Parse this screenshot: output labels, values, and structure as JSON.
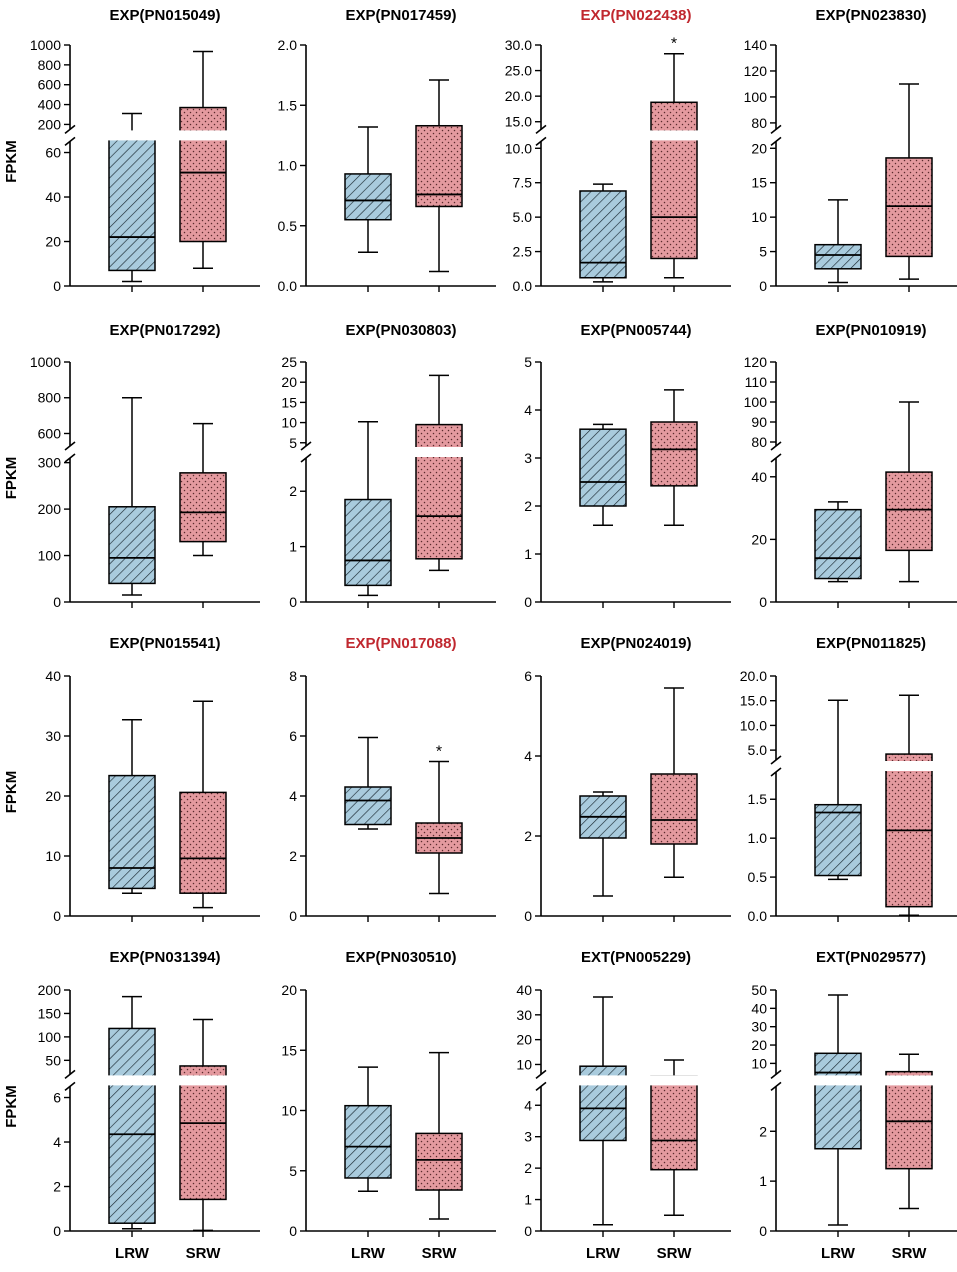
{
  "y_axis_label": "FPKM",
  "x_categories": [
    "LRW",
    "SRW"
  ],
  "colors": {
    "lrw_fill": "#a9cbdd",
    "srw_fill": "#e49a9f",
    "axis": "#000000",
    "title_default": "#000000",
    "title_significant": "#c0282f"
  },
  "chart_data": [
    {
      "type": "boxplot",
      "title": "EXP(PN015049)",
      "highlight": false,
      "ylabel": "FPKM",
      "categories": [
        "LRW",
        "SRW"
      ],
      "axis_break": true,
      "lower_ticks": [
        0,
        20,
        40,
        60
      ],
      "upper_ticks": [
        200,
        400,
        600,
        800,
        1000
      ],
      "lower_range": [
        0,
        65
      ],
      "upper_range": [
        150,
        1000
      ],
      "boxes": [
        {
          "name": "LRW",
          "min": 2,
          "q1": 7,
          "median": 22,
          "q3": 120,
          "max": 310
        },
        {
          "name": "SRW",
          "min": 8,
          "q1": 20,
          "median": 51,
          "q3": 370,
          "max": 935
        }
      ],
      "annotations": []
    },
    {
      "type": "boxplot",
      "title": "EXP(PN017459)",
      "highlight": false,
      "ylabel": "",
      "categories": [
        "LRW",
        "SRW"
      ],
      "axis_break": false,
      "ticks": [
        0.0,
        0.5,
        1.0,
        1.5,
        2.0
      ],
      "ylim": [
        0,
        2.0
      ],
      "decimals": 1,
      "boxes": [
        {
          "name": "LRW",
          "min": 0.28,
          "q1": 0.55,
          "median": 0.71,
          "q3": 0.93,
          "max": 1.32
        },
        {
          "name": "SRW",
          "min": 0.12,
          "q1": 0.66,
          "median": 0.76,
          "q3": 1.33,
          "max": 1.71
        }
      ],
      "annotations": []
    },
    {
      "type": "boxplot",
      "title": "EXP(PN022438)",
      "highlight": true,
      "ylabel": "",
      "categories": [
        "LRW",
        "SRW"
      ],
      "axis_break": true,
      "decimals": 1,
      "lower_ticks": [
        0.0,
        2.5,
        5.0,
        7.5,
        10.0
      ],
      "upper_ticks": [
        15,
        20,
        25,
        30
      ],
      "lower_range": [
        0,
        10.5
      ],
      "upper_range": [
        13.5,
        30
      ],
      "boxes": [
        {
          "name": "LRW",
          "min": 0.3,
          "q1": 0.6,
          "median": 1.7,
          "q3": 6.9,
          "max": 7.4
        },
        {
          "name": "SRW",
          "min": 0.6,
          "q1": 2.0,
          "median": 5.0,
          "q3": 18.8,
          "max": 28.3
        }
      ],
      "annotations": [
        {
          "category": "SRW",
          "text": "*"
        }
      ]
    },
    {
      "type": "boxplot",
      "title": "EXP(PN023830)",
      "highlight": false,
      "ylabel": "",
      "categories": [
        "LRW",
        "SRW"
      ],
      "axis_break": true,
      "lower_ticks": [
        0,
        5,
        10,
        15,
        20
      ],
      "upper_ticks": [
        80,
        100,
        120,
        140
      ],
      "lower_range": [
        0,
        21
      ],
      "upper_range": [
        75,
        140
      ],
      "boxes": [
        {
          "name": "LRW",
          "min": 0.5,
          "q1": 2.5,
          "median": 4.5,
          "q3": 6.0,
          "max": 12.5
        },
        {
          "name": "SRW",
          "min": 1.0,
          "q1": 4.3,
          "median": 11.6,
          "q3": 18.6,
          "max": 110
        }
      ],
      "annotations": []
    },
    {
      "type": "boxplot",
      "title": "EXP(PN017292)",
      "highlight": false,
      "ylabel": "FPKM",
      "categories": [
        "LRW",
        "SRW"
      ],
      "axis_break": true,
      "lower_ticks": [
        0,
        100,
        200,
        300
      ],
      "upper_ticks": [
        600,
        800,
        1000
      ],
      "lower_range": [
        0,
        310
      ],
      "upper_range": [
        530,
        1000
      ],
      "boxes": [
        {
          "name": "LRW",
          "min": 15,
          "q1": 40,
          "median": 95,
          "q3": 205,
          "max": 800
        },
        {
          "name": "SRW",
          "min": 100,
          "q1": 130,
          "median": 193,
          "q3": 278,
          "max": 655
        }
      ],
      "annotations": []
    },
    {
      "type": "boxplot",
      "title": "EXP(PN030803)",
      "highlight": false,
      "ylabel": "",
      "categories": [
        "LRW",
        "SRW"
      ],
      "axis_break": true,
      "lower_ticks": [
        0,
        1,
        2
      ],
      "upper_ticks": [
        5,
        10,
        15,
        20,
        25
      ],
      "lower_range": [
        0,
        2.6
      ],
      "upper_range": [
        4.2,
        25
      ],
      "boxes": [
        {
          "name": "LRW",
          "min": 0.12,
          "q1": 0.3,
          "median": 0.75,
          "q3": 1.85,
          "max": 10.2
        },
        {
          "name": "SRW",
          "min": 0.57,
          "q1": 0.78,
          "median": 1.55,
          "q3": 9.5,
          "max": 21.7
        }
      ],
      "annotations": []
    },
    {
      "type": "boxplot",
      "title": "EXP(PN005744)",
      "highlight": false,
      "ylabel": "",
      "categories": [
        "LRW",
        "SRW"
      ],
      "axis_break": false,
      "ticks": [
        0,
        1,
        2,
        3,
        4,
        5
      ],
      "ylim": [
        0,
        5
      ],
      "decimals": 0,
      "boxes": [
        {
          "name": "LRW",
          "min": 1.6,
          "q1": 2.0,
          "median": 2.5,
          "q3": 3.6,
          "max": 3.7
        },
        {
          "name": "SRW",
          "min": 1.6,
          "q1": 2.42,
          "median": 3.18,
          "q3": 3.75,
          "max": 4.42
        }
      ],
      "annotations": []
    },
    {
      "type": "boxplot",
      "title": "EXP(PN010919)",
      "highlight": false,
      "ylabel": "",
      "categories": [
        "LRW",
        "SRW"
      ],
      "axis_break": true,
      "lower_ticks": [
        0,
        20,
        40
      ],
      "upper_ticks": [
        80,
        90,
        100,
        110,
        120
      ],
      "lower_range": [
        0,
        46
      ],
      "upper_range": [
        78,
        120
      ],
      "boxes": [
        {
          "name": "LRW",
          "min": 6.5,
          "q1": 7.5,
          "median": 14,
          "q3": 29.5,
          "max": 32
        },
        {
          "name": "SRW",
          "min": 6.5,
          "q1": 16.5,
          "median": 29.5,
          "q3": 41.5,
          "max": 100
        }
      ],
      "annotations": []
    },
    {
      "type": "boxplot",
      "title": "EXP(PN015541)",
      "highlight": false,
      "ylabel": "FPKM",
      "categories": [
        "LRW",
        "SRW"
      ],
      "axis_break": false,
      "ticks": [
        0,
        10,
        20,
        30,
        40
      ],
      "ylim": [
        0,
        40
      ],
      "decimals": 0,
      "boxes": [
        {
          "name": "LRW",
          "min": 3.8,
          "q1": 4.6,
          "median": 8.0,
          "q3": 23.4,
          "max": 32.7
        },
        {
          "name": "SRW",
          "min": 1.4,
          "q1": 3.8,
          "median": 9.6,
          "q3": 20.6,
          "max": 35.8
        }
      ],
      "annotations": []
    },
    {
      "type": "boxplot",
      "title": "EXP(PN017088)",
      "highlight": true,
      "ylabel": "",
      "categories": [
        "LRW",
        "SRW"
      ],
      "axis_break": false,
      "ticks": [
        0,
        2,
        4,
        6,
        8
      ],
      "ylim": [
        0,
        8
      ],
      "decimals": 0,
      "boxes": [
        {
          "name": "LRW",
          "min": 2.9,
          "q1": 3.05,
          "median": 3.85,
          "q3": 4.3,
          "max": 5.95
        },
        {
          "name": "SRW",
          "min": 0.75,
          "q1": 2.1,
          "median": 2.6,
          "q3": 3.1,
          "max": 5.15
        }
      ],
      "annotations": [
        {
          "category": "SRW",
          "text": "*"
        }
      ]
    },
    {
      "type": "boxplot",
      "title": "EXP(PN024019)",
      "highlight": false,
      "ylabel": "",
      "categories": [
        "LRW",
        "SRW"
      ],
      "axis_break": false,
      "ticks": [
        0,
        2,
        4,
        6
      ],
      "ylim": [
        0,
        6
      ],
      "decimals": 0,
      "boxes": [
        {
          "name": "LRW",
          "min": 0.5,
          "q1": 1.95,
          "median": 2.48,
          "q3": 3.0,
          "max": 3.1
        },
        {
          "name": "SRW",
          "min": 0.97,
          "q1": 1.8,
          "median": 2.4,
          "q3": 3.55,
          "max": 5.7
        }
      ],
      "annotations": []
    },
    {
      "type": "boxplot",
      "title": "EXP(PN011825)",
      "highlight": false,
      "ylabel": "",
      "categories": [
        "LRW",
        "SRW"
      ],
      "axis_break": true,
      "decimals": 1,
      "lower_ticks": [
        0.0,
        0.5,
        1.0,
        1.5
      ],
      "upper_ticks": [
        5,
        10,
        15,
        20
      ],
      "lower_range": [
        0,
        1.85
      ],
      "upper_range": [
        3,
        20
      ],
      "boxes": [
        {
          "name": "LRW",
          "min": 0.47,
          "q1": 0.52,
          "median": 1.33,
          "q3": 1.43,
          "max": 15.1
        },
        {
          "name": "SRW",
          "min": 0.01,
          "q1": 0.12,
          "median": 1.1,
          "q3": 4.2,
          "max": 16.1
        }
      ],
      "annotations": []
    },
    {
      "type": "boxplot",
      "title": "EXP(PN031394)",
      "highlight": false,
      "ylabel": "FPKM",
      "categories": [
        "LRW",
        "SRW"
      ],
      "axis_break": true,
      "lower_ticks": [
        0,
        2,
        4,
        6
      ],
      "upper_ticks": [
        50,
        100,
        150,
        200
      ],
      "lower_range": [
        0,
        6.5
      ],
      "upper_range": [
        20,
        200
      ],
      "boxes": [
        {
          "name": "LRW",
          "min": 0.1,
          "q1": 0.35,
          "median": 4.35,
          "q3": 118,
          "max": 186
        },
        {
          "name": "SRW",
          "min": 0.03,
          "q1": 1.42,
          "median": 4.85,
          "q3": 38,
          "max": 137
        }
      ],
      "annotations": []
    },
    {
      "type": "boxplot",
      "title": "EXP(PN030510)",
      "highlight": false,
      "ylabel": "",
      "categories": [
        "LRW",
        "SRW"
      ],
      "axis_break": false,
      "ticks": [
        0,
        5,
        10,
        15,
        20
      ],
      "ylim": [
        0,
        20
      ],
      "decimals": 0,
      "boxes": [
        {
          "name": "LRW",
          "min": 3.3,
          "q1": 4.4,
          "median": 7.0,
          "q3": 10.4,
          "max": 13.6
        },
        {
          "name": "SRW",
          "min": 1.0,
          "q1": 3.4,
          "median": 5.9,
          "q3": 8.1,
          "max": 14.8
        }
      ],
      "annotations": []
    },
    {
      "type": "boxplot",
      "title": "EXT(PN005229)",
      "highlight": false,
      "ylabel": "",
      "categories": [
        "LRW",
        "SRW"
      ],
      "axis_break": true,
      "lower_ticks": [
        0,
        1,
        2,
        3,
        4
      ],
      "upper_ticks": [
        10,
        20,
        30,
        40
      ],
      "lower_range": [
        0,
        4.6
      ],
      "upper_range": [
        6,
        40
      ],
      "boxes": [
        {
          "name": "LRW",
          "min": 0.2,
          "q1": 2.88,
          "median": 3.9,
          "q3": 9.3,
          "max": 37.2
        },
        {
          "name": "SRW",
          "min": 0.5,
          "q1": 1.95,
          "median": 2.88,
          "q3": 5.8,
          "max": 11.8
        }
      ],
      "annotations": []
    },
    {
      "type": "boxplot",
      "title": "EXT(PN029577)",
      "highlight": false,
      "ylabel": "",
      "categories": [
        "LRW",
        "SRW"
      ],
      "axis_break": true,
      "lower_ticks": [
        0,
        1,
        2
      ],
      "upper_ticks": [
        10,
        20,
        30,
        40,
        50
      ],
      "lower_range": [
        0,
        2.9
      ],
      "upper_range": [
        4,
        50
      ],
      "boxes": [
        {
          "name": "LRW",
          "min": 0.12,
          "q1": 1.65,
          "median": 5.0,
          "q3": 15.5,
          "max": 47.3
        },
        {
          "name": "SRW",
          "min": 0.45,
          "q1": 1.25,
          "median": 2.2,
          "q3": 5.5,
          "max": 15.0
        }
      ],
      "annotations": []
    }
  ]
}
